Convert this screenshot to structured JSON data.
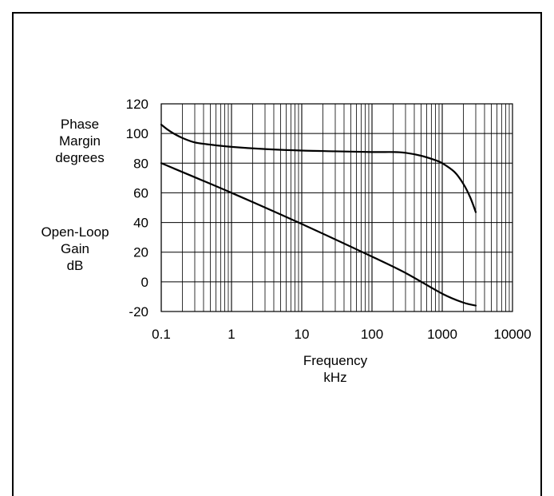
{
  "chart_data": {
    "type": "line",
    "x_scale": "log",
    "xlim": [
      0.1,
      10000
    ],
    "ylim": [
      -20,
      120
    ],
    "grid": true,
    "xlabel": [
      "Frequency",
      "kHz"
    ],
    "ylabel_top": [
      "Phase",
      "Margin",
      "degrees"
    ],
    "ylabel_bottom": [
      "Open-Loop",
      "Gain",
      "dB"
    ],
    "x_ticks": [
      {
        "value": 0.1,
        "label": "0.1"
      },
      {
        "value": 1,
        "label": "1"
      },
      {
        "value": 10,
        "label": "10"
      },
      {
        "value": 100,
        "label": "100"
      },
      {
        "value": 1000,
        "label": "1000"
      },
      {
        "value": 10000,
        "label": "10000"
      }
    ],
    "y_ticks": [
      {
        "value": 120,
        "label": "120"
      },
      {
        "value": 100,
        "label": "100"
      },
      {
        "value": 80,
        "label": "80"
      },
      {
        "value": 60,
        "label": "60"
      },
      {
        "value": 40,
        "label": "40"
      },
      {
        "value": 20,
        "label": "20"
      },
      {
        "value": 0,
        "label": "0"
      },
      {
        "value": -20,
        "label": "-20"
      }
    ],
    "series": [
      {
        "x": [
          0.1,
          0.12,
          0.15,
          0.2,
          0.3,
          0.5,
          1,
          3,
          10,
          30,
          100,
          200,
          300,
          500,
          800,
          1000,
          1500,
          2000,
          2500,
          3000
        ],
        "y": [
          106,
          103,
          100,
          97,
          94,
          92.5,
          91,
          89.5,
          88.5,
          88,
          87.5,
          87.5,
          87,
          85,
          82,
          80,
          74,
          66,
          57,
          47
        ]
      },
      {
        "x": [
          0.1,
          1,
          10,
          100,
          300,
          1000,
          2000,
          3000
        ],
        "y": [
          80,
          60,
          39,
          17,
          6,
          -8,
          -14,
          -16
        ]
      }
    ]
  },
  "style": {
    "line_color": "#000000",
    "grid_color": "#000000"
  }
}
